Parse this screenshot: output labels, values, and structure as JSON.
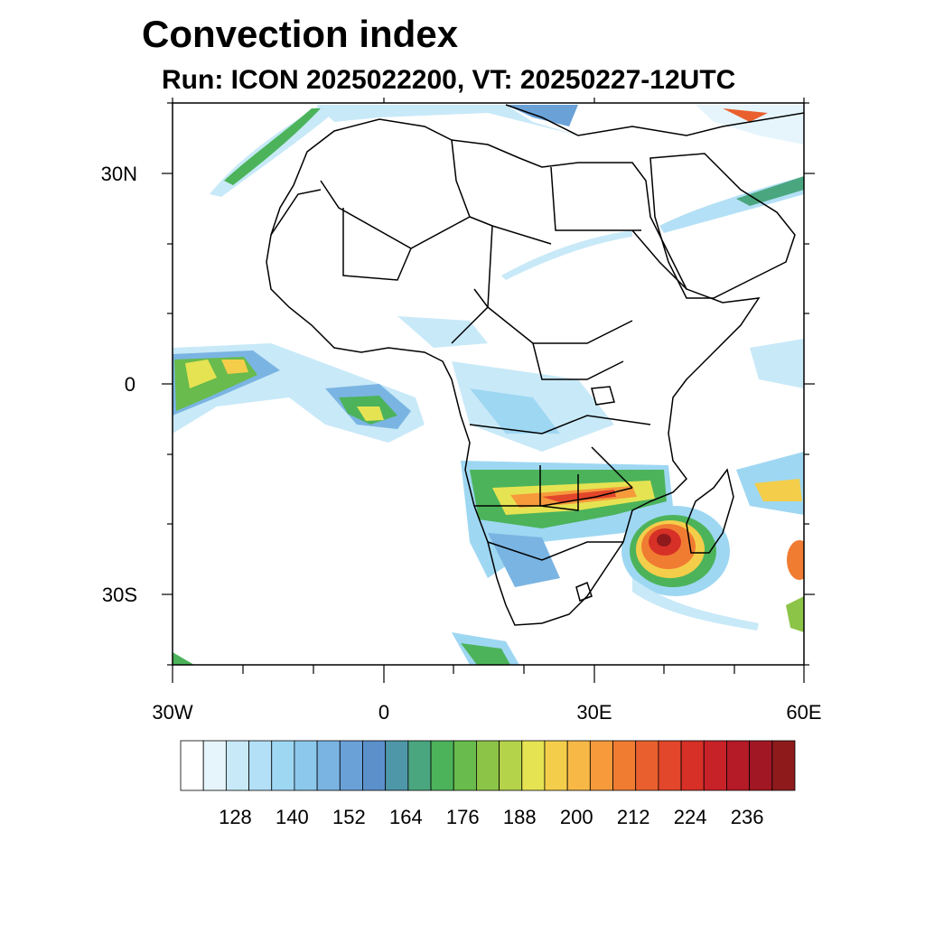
{
  "title": "Convection index",
  "subtitle": "Run: ICON 2025022200,  VT: 20250227-12UTC",
  "axes": {
    "lat_labels": [
      "30N",
      "0",
      "30S"
    ],
    "lon_labels": [
      "30W",
      "0",
      "30E",
      "60E"
    ]
  },
  "colorbar": {
    "tick_labels": [
      "128",
      "140",
      "152",
      "164",
      "176",
      "188",
      "200",
      "212",
      "224",
      "236"
    ],
    "colors": [
      "#ffffff",
      "#e6f5fc",
      "#c8e9f8",
      "#b3e0f6",
      "#9ed7f2",
      "#8cc8ec",
      "#7ab4e2",
      "#6aa1d7",
      "#5b90cb",
      "#4e97a8",
      "#4aa67f",
      "#4cb35b",
      "#68bb4c",
      "#8cc448",
      "#b4d24a",
      "#e6e352",
      "#f4ce4a",
      "#f7b846",
      "#f69a3c",
      "#f07c32",
      "#e9602e",
      "#e2462b",
      "#d73027",
      "#c82229",
      "#b51a27",
      "#a11723",
      "#8e1a1c"
    ]
  }
}
